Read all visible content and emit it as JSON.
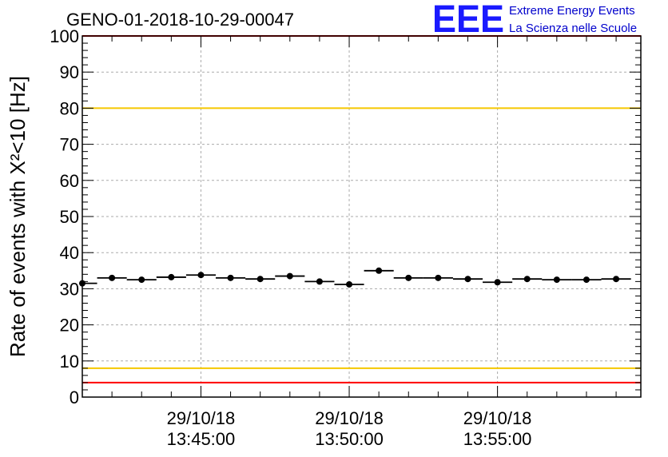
{
  "title": "GENO-01-2018-10-29-00047",
  "logo": {
    "letters": "EEE",
    "line1": "Extreme Energy Events",
    "line2": "La Scienza nelle Scuole",
    "color": "#1a1aff"
  },
  "chart_data": {
    "type": "scatter",
    "title": "GENO-01-2018-10-29-00047",
    "ylabel": "Rate of events with X²<10 [Hz]",
    "xlabel": "",
    "ylim": [
      0,
      100
    ],
    "yticks": [
      0,
      10,
      20,
      30,
      40,
      50,
      60,
      70,
      80,
      90,
      100
    ],
    "xlim": [
      "13:41:00",
      "13:59:50"
    ],
    "xticks": [
      {
        "date": "29/10/18",
        "time": "13:45:00"
      },
      {
        "date": "29/10/18",
        "time": "13:50:00"
      },
      {
        "date": "29/10/18",
        "time": "13:55:00"
      }
    ],
    "grid": true,
    "series": [
      {
        "x": [
          "13:41:00",
          "13:42:00",
          "13:43:00",
          "13:44:00",
          "13:45:00",
          "13:46:00",
          "13:47:00",
          "13:48:00",
          "13:49:00",
          "13:50:00",
          "13:51:00",
          "13:52:00",
          "13:53:00",
          "13:54:00",
          "13:55:00",
          "13:56:00",
          "13:57:00",
          "13:58:00",
          "13:59:00"
        ],
        "values": [
          31.5,
          33.0,
          32.5,
          33.2,
          33.8,
          33.0,
          32.7,
          33.5,
          32.0,
          31.2,
          35.0,
          33.0,
          33.0,
          32.7,
          31.8,
          32.7,
          32.5,
          32.5,
          32.7
        ],
        "color": "#000000"
      }
    ],
    "reference_lines": [
      {
        "y": 100,
        "color": "#ff0000"
      },
      {
        "y": 80,
        "color": "#f5c800"
      },
      {
        "y": 8,
        "color": "#f5c800"
      },
      {
        "y": 4,
        "color": "#ff0000"
      }
    ]
  }
}
